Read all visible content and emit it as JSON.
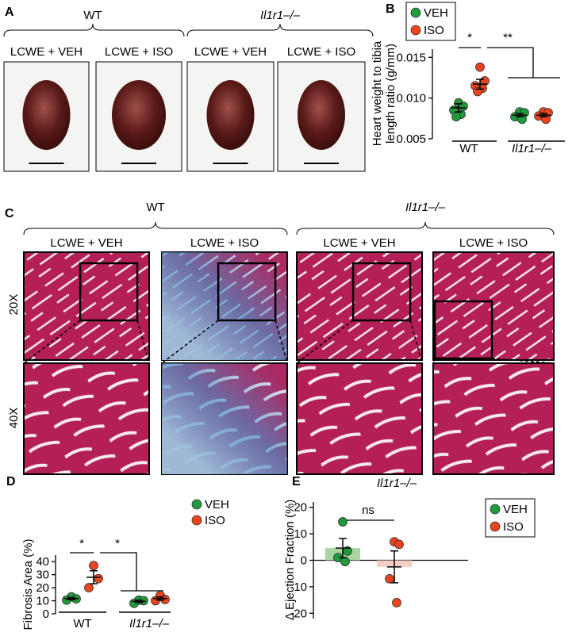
{
  "panels": {
    "A": {
      "label": "A",
      "groups": [
        "WT",
        "Il1r1–/–"
      ],
      "conditions": [
        "LCWE + VEH",
        "LCWE + ISO",
        "LCWE + VEH",
        "LCWE + ISO"
      ]
    },
    "C": {
      "label": "C",
      "groups": [
        "WT",
        "Il1r1–/–"
      ],
      "conditions": [
        "LCWE + VEH",
        "LCWE + ISO",
        "LCWE + VEH",
        "LCWE + ISO"
      ],
      "magnifications": [
        "20X",
        "40X"
      ]
    }
  },
  "chart_data": [
    {
      "panel_label": "B",
      "type": "scatter",
      "y_label": [
        "Heart weight to tibia",
        "length ratio (g/mm)"
      ],
      "categories": [
        "WT",
        "Il1r1–/–"
      ],
      "series": [
        {
          "name": "VEH",
          "color": "#1f9a3c",
          "values": [
            [
              0.0094,
              0.009,
              0.0085,
              0.008,
              0.0077
            ],
            [
              0.0083,
              0.0082,
              0.0077,
              0.0074
            ]
          ],
          "means": [
            0.0088,
            0.0079
          ],
          "sems": [
            0.0005,
            0.0002
          ]
        },
        {
          "name": "ISO",
          "color": "#e9441d",
          "values": [
            [
              0.0138,
              0.0121,
              0.0115,
              0.0112,
              0.0108
            ],
            [
              0.0083,
              0.0082,
              0.0078,
              0.0074
            ]
          ],
          "means": [
            0.0117,
            0.0079
          ],
          "sems": [
            0.0006,
            0.0002
          ]
        }
      ],
      "ylim": [
        0.005,
        0.016
      ],
      "yticks": [
        0.005,
        {
          "value": 0.01,
          "label": "0.010"
        },
        0.015
      ],
      "annotations": [
        "*",
        "**"
      ]
    },
    {
      "panel_label": "D",
      "type": "scatter",
      "y_label": [
        "Fibrosis Area (%)"
      ],
      "categories": [
        "WT",
        "Il1r1–/–"
      ],
      "series": [
        {
          "name": "VEH",
          "color": "#1f9a3c",
          "values": [
            [
              13,
              11.5,
              10.5
            ],
            [
              10.5,
              10,
              8
            ]
          ],
          "means": [
            11.7,
            9.5
          ],
          "sems": [
            0.8,
            0.8
          ]
        },
        {
          "name": "ISO",
          "color": "#e9441d",
          "values": [
            [
              37,
              27,
              20
            ],
            [
              14,
              11,
              10
            ]
          ],
          "means": [
            28,
            11.7
          ],
          "sems": [
            5,
            1.2
          ]
        }
      ],
      "ylim": [
        0,
        45
      ],
      "yticks": [
        0,
        10,
        20,
        30,
        40
      ],
      "annotations": [
        "*",
        "*"
      ]
    },
    {
      "panel_label": "E",
      "type": "bar",
      "title": "Il1r1–/–",
      "y_label": [
        "Δ Ejection Fraction (%)"
      ],
      "series": [
        {
          "name": "VEH",
          "color": "#1f9a3c",
          "bar_color": "#a8d5a0",
          "values": [
            [
              14.5,
              3.5,
              1,
              -0.5
            ]
          ],
          "means": [
            4.6
          ],
          "sems": [
            3.6
          ]
        },
        {
          "name": "ISO",
          "color": "#e9441d",
          "bar_color": "#f6cdc4",
          "values": [
            [
              7,
              6,
              -7,
              -16
            ]
          ],
          "means": [
            -2.5
          ],
          "sems": [
            6
          ]
        }
      ],
      "ylim": [
        -22,
        22
      ],
      "yticks": [
        -20,
        -10,
        0,
        10,
        20
      ],
      "annotations": [
        "ns"
      ]
    }
  ]
}
